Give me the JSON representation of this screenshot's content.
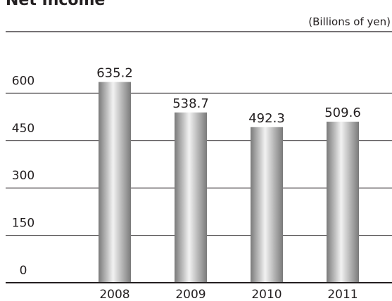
{
  "chart_data": {
    "type": "bar",
    "title": "Net Income",
    "unit_label": "(Billions of yen)",
    "categories": [
      "2008",
      "2009",
      "2010",
      "2011"
    ],
    "values": [
      635.2,
      538.7,
      492.3,
      509.6
    ],
    "data_labels": [
      "635.2",
      "538.7",
      "492.3",
      "509.6"
    ],
    "y_ticks": [
      0,
      150,
      300,
      450,
      600
    ],
    "y_tick_labels": [
      "0",
      "150",
      "300",
      "450",
      "600"
    ],
    "ylim": [
      0,
      750
    ],
    "grid": true,
    "colors": {
      "bar_dark": "#7a7a7a",
      "bar_light": "#f2f2f2",
      "grid": "#231f20",
      "text": "#231f20"
    }
  }
}
